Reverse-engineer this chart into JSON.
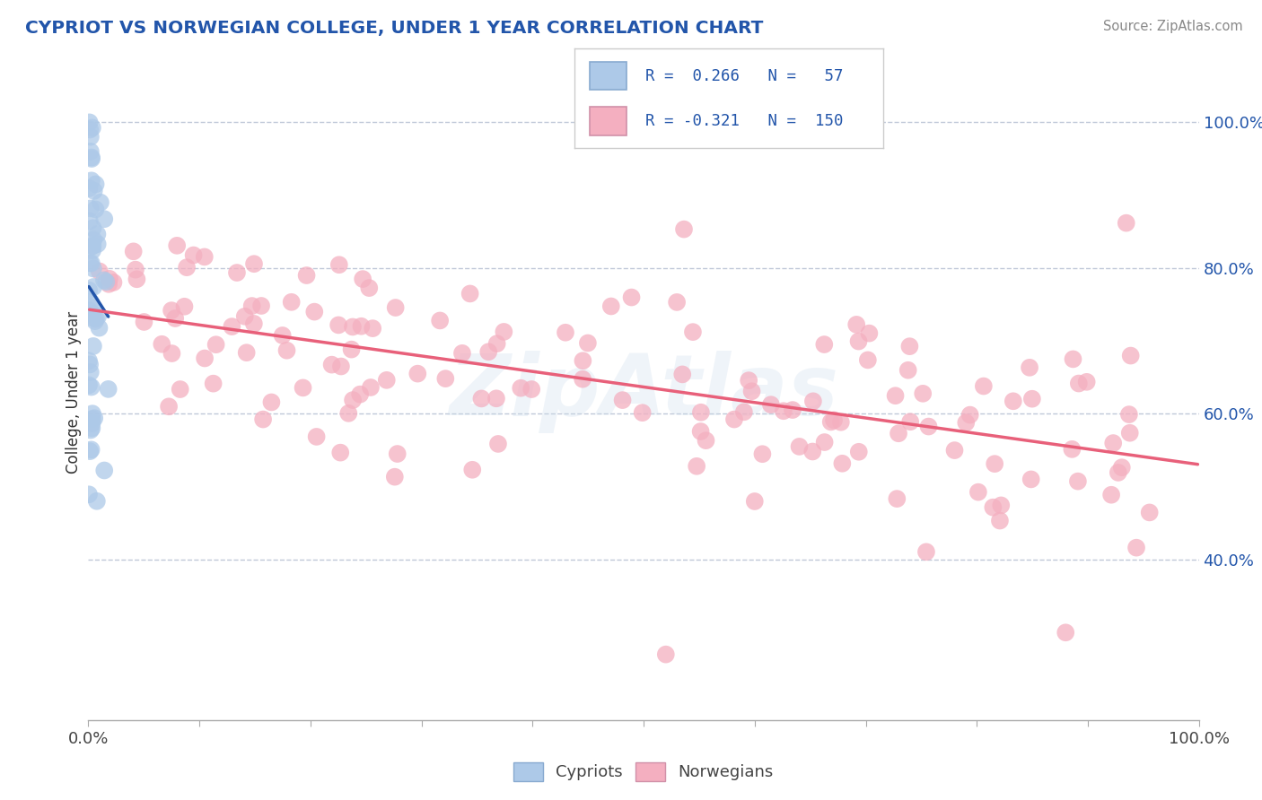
{
  "title": "CYPRIOT VS NORWEGIAN COLLEGE, UNDER 1 YEAR CORRELATION CHART",
  "source_text": "Source: ZipAtlas.com",
  "ylabel": "College, Under 1 year",
  "xlim": [
    0.0,
    1.0
  ],
  "ylim": [
    0.18,
    1.08
  ],
  "yticks": [
    0.4,
    0.6,
    0.8,
    1.0
  ],
  "ytick_labels": [
    "40.0%",
    "60.0%",
    "80.0%",
    "100.0%"
  ],
  "cypriot_color": "#adc9e8",
  "norwegian_color": "#f4afc0",
  "cypriot_line_color": "#2255aa",
  "norwegian_line_color": "#e8607a",
  "background_color": "#ffffff",
  "grid_color": "#c0c8d8",
  "watermark": "ZipAtlas",
  "title_color": "#2255aa",
  "source_color": "#888888",
  "axis_color": "#aaaaaa",
  "tick_label_color": "#2255aa",
  "bottom_label_color": "#444444"
}
